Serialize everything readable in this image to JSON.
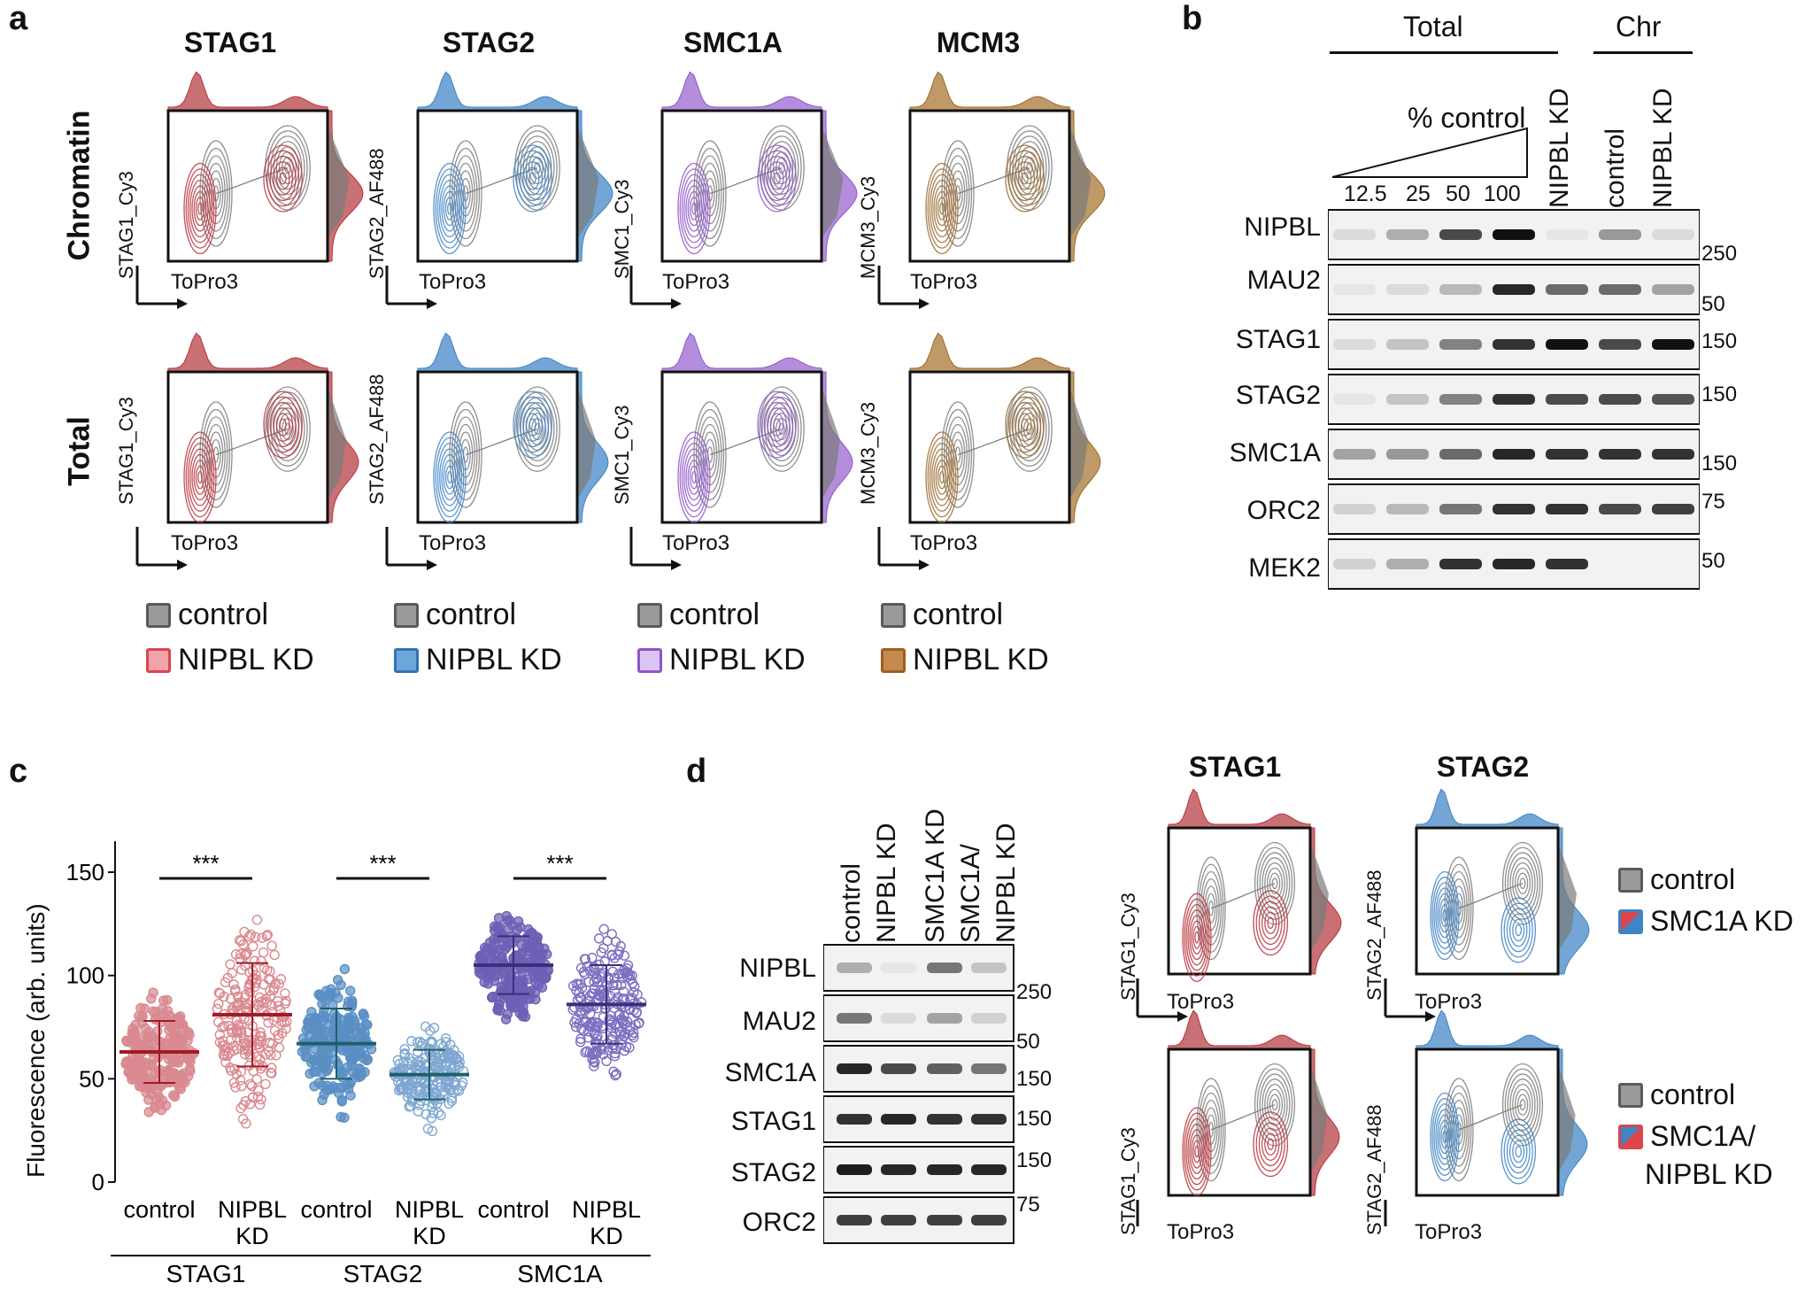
{
  "panel_a": {
    "letter": "a",
    "titles": [
      "STAG1",
      "STAG2",
      "SMC1A",
      "MCM3"
    ],
    "rows": [
      "Chromatin",
      "Total"
    ],
    "y_labels": [
      "STAG1_Cy3",
      "STAG2_AF488",
      "SMC1_Cy3",
      "MCM3_Cy3"
    ],
    "x_label": "ToPro3",
    "legend": [
      {
        "control": "control",
        "kd": "NIPBL KD",
        "kd_color": "#d9464c"
      },
      {
        "control": "control",
        "kd": "NIPBL KD",
        "kd_color": "#3f84c4"
      },
      {
        "control": "control",
        "kd": "NIPBL KD",
        "kd_color": "#8e55c8"
      },
      {
        "control": "control",
        "kd": "NIPBL KD",
        "kd_color": "#b97a34"
      }
    ],
    "colors": {
      "control": "#8a8a8a",
      "stag1": "#b9343c",
      "stag2": "#3f84c4",
      "smc1a": "#8e55c8",
      "mcm3": "#9c6a2b"
    }
  },
  "panel_b": {
    "letter": "b",
    "group_total": "Total",
    "group_chr": "Chr",
    "ramp_label": "% control",
    "lanes": [
      "12.5",
      "25",
      "50",
      "100"
    ],
    "lane_kd": "NIPBL KD",
    "lane_control": "control",
    "lane_chr_kd": "NIPBL KD",
    "proteins": [
      "NIPBL",
      "MAU2",
      "STAG1",
      "STAG2",
      "SMC1A",
      "ORC2",
      "MEK2"
    ],
    "mw": [
      "250",
      "50",
      "150",
      "150",
      "150",
      "75",
      "50"
    ]
  },
  "panel_c": {
    "letter": "c",
    "chart_data": {
      "type": "scatter",
      "ylabel": "Fluorescence (arb. units)",
      "ylim": [
        0,
        165
      ],
      "yticks": [
        0,
        50,
        100,
        150
      ],
      "groups": [
        {
          "gene": "STAG1",
          "conditions": [
            {
              "label": "control",
              "mean": 63,
              "sd": 15,
              "color": "#d9898f"
            },
            {
              "label": "NIPBL KD",
              "mean": 81,
              "sd": 25,
              "color": "#d9898f"
            }
          ],
          "significance": "***"
        },
        {
          "gene": "STAG2",
          "conditions": [
            {
              "label": "control",
              "mean": 67,
              "sd": 17,
              "color": "#5a8fc4"
            },
            {
              "label": "NIPBL KD",
              "mean": 52,
              "sd": 12,
              "color": "#7fa7d1"
            }
          ],
          "significance": "***"
        },
        {
          "gene": "SMC1A",
          "conditions": [
            {
              "label": "control",
              "mean": 105,
              "sd": 14,
              "color": "#6d5fb5"
            },
            {
              "label": "NIPBL KD",
              "mean": 86,
              "sd": 19,
              "color": "#7b6fc0"
            }
          ],
          "significance": "***"
        }
      ],
      "mean_line_colors": [
        "#a01c26",
        "#a01c26",
        "#1f5f6b",
        "#1f5f6b",
        "#3a2f7a",
        "#3a2f7a"
      ]
    },
    "cond_labels": [
      "control",
      "NIPBL",
      "KD"
    ],
    "gene_labels": [
      "STAG1",
      "STAG2",
      "SMC1A"
    ]
  },
  "panel_d": {
    "letter": "d",
    "lanes": [
      "control",
      "NIPBL KD",
      "SMC1A KD",
      "SMC1A/",
      "NIPBL KD"
    ],
    "proteins": [
      "NIPBL",
      "MAU2",
      "SMC1A",
      "STAG1",
      "STAG2",
      "ORC2"
    ],
    "mw": [
      "250",
      "50",
      "150",
      "150",
      "150",
      "75"
    ],
    "titles": [
      "STAG1",
      "STAG2"
    ],
    "y_labels": [
      "STAG1_Cy3",
      "STAG2_AF488"
    ],
    "x_label": "ToPro3",
    "legend_top": {
      "control": "control",
      "kd": "SMC1A KD"
    },
    "legend_bottom": {
      "control": "control",
      "kd1": "SMC1A/",
      "kd2": "NIPBL KD"
    }
  }
}
